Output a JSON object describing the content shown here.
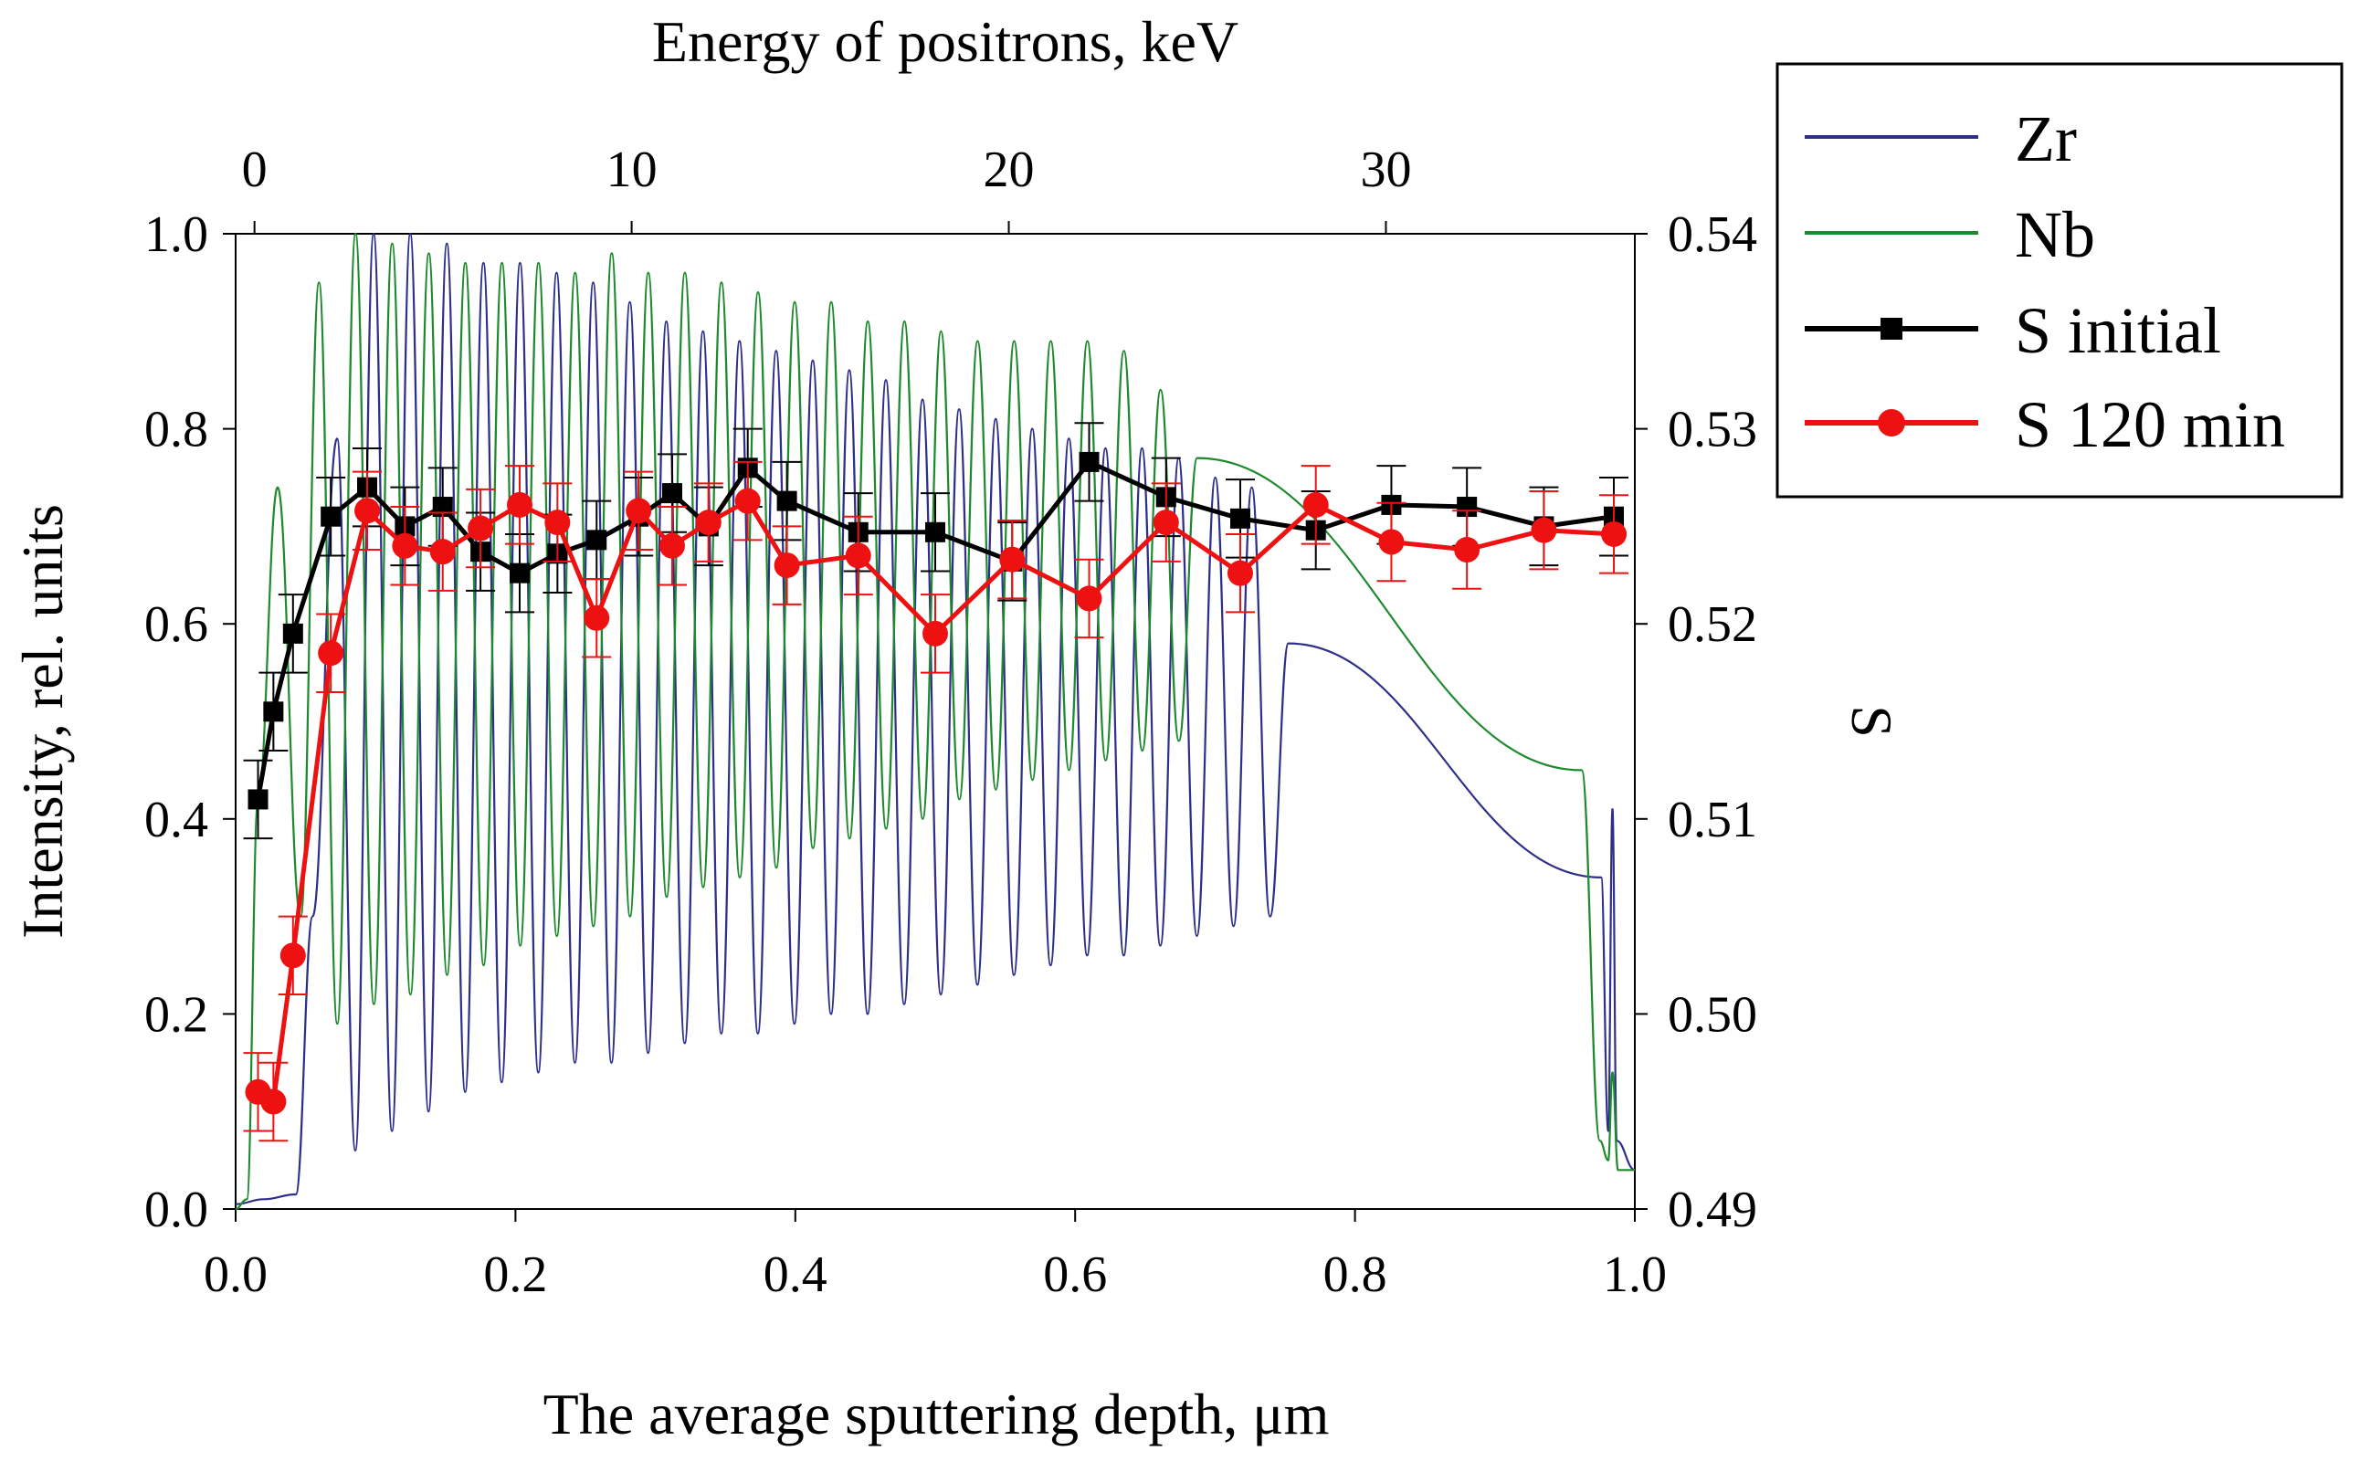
{
  "chart_data": {
    "type": "line",
    "title": "",
    "xlabel": "The average sputtering depth, μm",
    "x2label": "Energy of positrons, keV",
    "ylabel": "Intensity, rel. units",
    "y2label": "S",
    "xlim": [
      0.0,
      1.0
    ],
    "x2lim": [
      -0.5,
      36.6
    ],
    "ylim": [
      0.0,
      1.0
    ],
    "y2lim": [
      0.49,
      0.54
    ],
    "x_ticks": [
      "0.0",
      "0.2",
      "0.4",
      "0.6",
      "0.8",
      "1.0"
    ],
    "x_tick_values": [
      0.0,
      0.2,
      0.4,
      0.6,
      0.8,
      1.0
    ],
    "x2_ticks": [
      "0",
      "10",
      "20",
      "30"
    ],
    "x2_tick_values": [
      0,
      10,
      20,
      30
    ],
    "y_ticks": [
      "0.0",
      "0.2",
      "0.4",
      "0.6",
      "0.8",
      "1.0"
    ],
    "y_tick_values": [
      0.0,
      0.2,
      0.4,
      0.6,
      0.8,
      1.0
    ],
    "y2_ticks": [
      "0.49",
      "0.50",
      "0.51",
      "0.52",
      "0.53",
      "0.54"
    ],
    "y2_tick_values": [
      0.49,
      0.5,
      0.51,
      0.52,
      0.53,
      0.54
    ],
    "grid": false,
    "legend_position": "outside-top-right",
    "series": [
      {
        "name": "Zr",
        "axis": "left",
        "color": "#2e2f8a",
        "style": "oscillating-line",
        "x": [
          0.0,
          0.033,
          0.069,
          0.095,
          0.121,
          0.147,
          0.173,
          0.199,
          0.226,
          0.252,
          0.278,
          0.304,
          0.33,
          0.356,
          0.382,
          0.408,
          0.434,
          0.46,
          0.486,
          0.512,
          0.538,
          0.564,
          0.59,
          0.616,
          0.642,
          0.668,
          0.694,
          0.72,
          0.746,
          0.772,
          0.798,
          0.824,
          0.85,
          0.876,
          0.9,
          0.925,
          0.955,
          0.98,
          0.984,
          1.0
        ],
        "peaks": [
          0.79,
          1.0,
          1.0,
          0.99,
          0.97,
          0.97,
          0.96,
          0.95,
          0.93,
          0.91,
          0.9,
          0.89,
          0.88,
          0.87,
          0.86,
          0.85,
          0.83,
          0.82,
          0.81,
          0.8,
          0.79,
          0.78,
          0.78,
          0.77,
          0.75,
          0.74,
          0.58
        ],
        "troughs": [
          0.06,
          0.08,
          0.1,
          0.12,
          0.13,
          0.14,
          0.15,
          0.15,
          0.16,
          0.17,
          0.18,
          0.18,
          0.19,
          0.2,
          0.2,
          0.21,
          0.22,
          0.23,
          0.24,
          0.25,
          0.26,
          0.26,
          0.27,
          0.28,
          0.29,
          0.3
        ]
      },
      {
        "name": "Nb",
        "axis": "left",
        "color": "#1e8a2e",
        "style": "oscillating-line",
        "peaks": [
          0.74,
          0.95,
          1.0,
          0.99,
          0.98,
          0.97,
          0.97,
          0.97,
          0.96,
          0.98,
          0.96,
          0.96,
          0.95,
          0.94,
          0.93,
          0.93,
          0.91,
          0.91,
          0.9,
          0.89,
          0.89,
          0.89,
          0.89,
          0.88,
          0.84,
          0.77
        ],
        "troughs": [
          0.3,
          0.19,
          0.21,
          0.22,
          0.24,
          0.25,
          0.27,
          0.28,
          0.29,
          0.3,
          0.32,
          0.33,
          0.34,
          0.35,
          0.37,
          0.38,
          0.39,
          0.4,
          0.42,
          0.43,
          0.44,
          0.45,
          0.46,
          0.47,
          0.48
        ]
      },
      {
        "name": "S initial",
        "axis": "right",
        "color": "#000000",
        "marker": "square",
        "x": [
          0.016,
          0.027,
          0.041,
          0.068,
          0.094,
          0.121,
          0.148,
          0.175,
          0.203,
          0.23,
          0.258,
          0.288,
          0.312,
          0.338,
          0.366,
          0.394,
          0.445,
          0.5,
          0.555,
          0.61,
          0.665,
          0.718,
          0.772,
          0.826,
          0.88,
          0.935,
          0.985
        ],
        "values": [
          0.511,
          0.5155,
          0.5195,
          0.5255,
          0.527,
          0.525,
          0.526,
          0.5237,
          0.5226,
          0.5236,
          0.5243,
          0.5255,
          0.5267,
          0.525,
          0.528,
          0.5263,
          0.5247,
          0.5247,
          0.5232,
          0.5283,
          0.5265,
          0.5254,
          0.5248,
          0.5261,
          0.526,
          0.525,
          0.5255
        ],
        "errors": [
          0.002,
          0.002,
          0.002,
          0.002,
          0.002,
          0.002,
          0.002,
          0.002,
          0.002,
          0.002,
          0.002,
          0.002,
          0.002,
          0.002,
          0.002,
          0.002,
          0.002,
          0.002,
          0.002,
          0.002,
          0.002,
          0.002,
          0.002,
          0.002,
          0.002,
          0.002,
          0.002
        ]
      },
      {
        "name": "S 120 min",
        "axis": "right",
        "color": "#ee1111",
        "marker": "circle",
        "x": [
          0.016,
          0.027,
          0.041,
          0.068,
          0.094,
          0.121,
          0.148,
          0.175,
          0.203,
          0.23,
          0.258,
          0.288,
          0.312,
          0.338,
          0.366,
          0.394,
          0.445,
          0.5,
          0.555,
          0.61,
          0.665,
          0.718,
          0.772,
          0.826,
          0.88,
          0.935,
          0.985
        ],
        "values": [
          0.496,
          0.4955,
          0.503,
          0.5185,
          0.5258,
          0.524,
          0.5237,
          0.5249,
          0.5261,
          0.5252,
          0.5203,
          0.5258,
          0.524,
          0.5252,
          0.5263,
          0.523,
          0.5235,
          0.5195,
          0.5233,
          0.5213,
          0.5252,
          0.5226,
          0.5261,
          0.5242,
          0.5238,
          0.5248,
          0.5246
        ],
        "errors": [
          0.002,
          0.002,
          0.002,
          0.002,
          0.002,
          0.002,
          0.002,
          0.002,
          0.002,
          0.002,
          0.002,
          0.002,
          0.002,
          0.002,
          0.002,
          0.002,
          0.002,
          0.002,
          0.002,
          0.002,
          0.002,
          0.002,
          0.002,
          0.002,
          0.002,
          0.002,
          0.002
        ]
      }
    ]
  }
}
